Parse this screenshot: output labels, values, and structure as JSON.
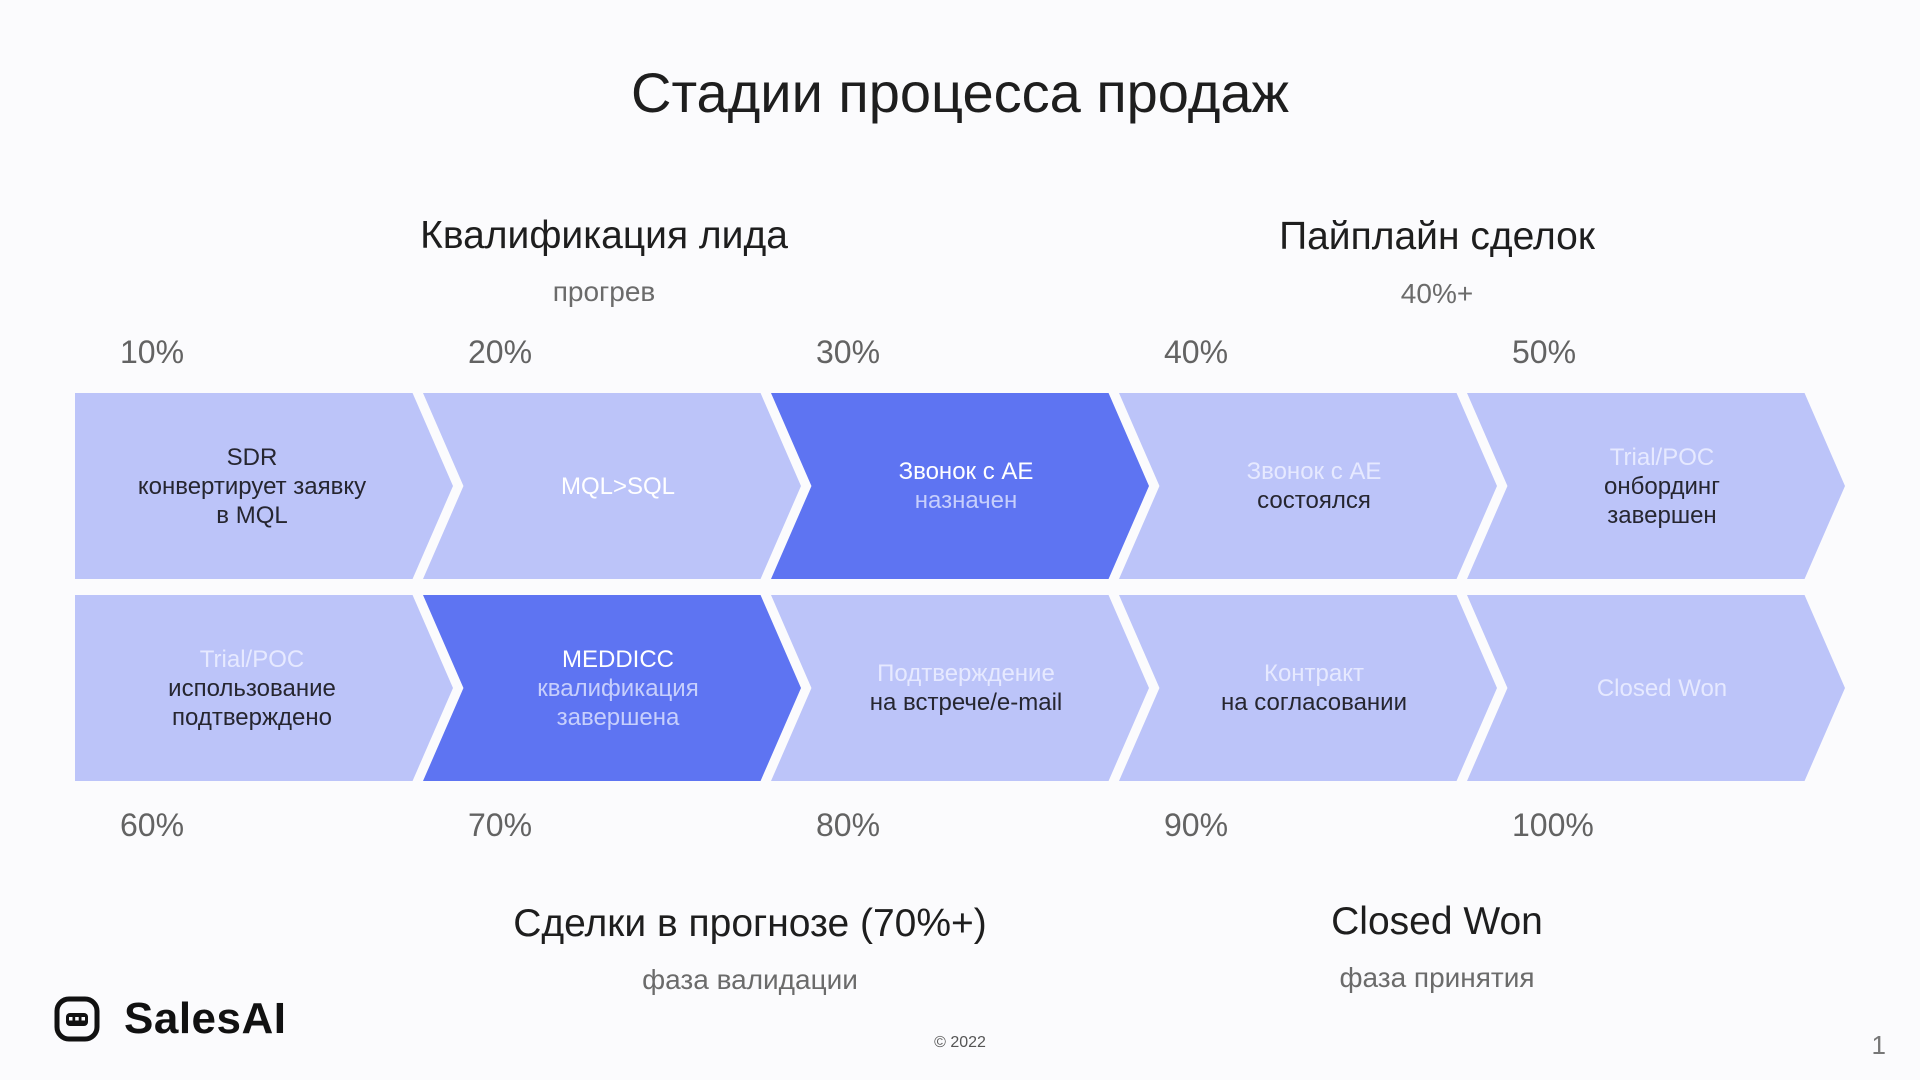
{
  "title": "Стадии процесса продаж",
  "groups": {
    "qualification": {
      "title": "Квалификация лида",
      "subtitle": "прогрев"
    },
    "pipeline": {
      "title": "Пайплайн сделок",
      "subtitle": "40%+"
    },
    "forecast": {
      "title": "Сделки в прогнозе (70%+)",
      "subtitle": "фаза валидации"
    },
    "closed": {
      "title": "Closed Won",
      "subtitle": "фаза принятия"
    }
  },
  "stages": [
    {
      "percent": "10%",
      "lines": [
        "SDR",
        "конвертирует заявку",
        "в MQL"
      ],
      "line_colors": [
        "dark",
        "dark",
        "dark"
      ],
      "fill": "light"
    },
    {
      "percent": "20%",
      "lines": [
        "MQL>SQL"
      ],
      "line_colors": [
        "white"
      ],
      "fill": "light"
    },
    {
      "percent": "30%",
      "lines": [
        "Звонок с АЕ",
        "назначен"
      ],
      "line_colors": [
        "white",
        "muted"
      ],
      "fill": "dark"
    },
    {
      "percent": "40%",
      "lines": [
        "Звонок с АЕ",
        "состоялся"
      ],
      "line_colors": [
        "muted",
        "dark"
      ],
      "fill": "light"
    },
    {
      "percent": "50%",
      "lines": [
        "Trial/POC",
        "онбординг",
        "завершен"
      ],
      "line_colors": [
        "muted",
        "dark",
        "dark"
      ],
      "fill": "light"
    },
    {
      "percent": "60%",
      "lines": [
        "Trial/POC",
        "использование",
        "подтверждено"
      ],
      "line_colors": [
        "muted",
        "dark",
        "dark"
      ],
      "fill": "light"
    },
    {
      "percent": "70%",
      "lines": [
        "MEDDICC",
        "квалификация",
        "завершена"
      ],
      "line_colors": [
        "white",
        "muted",
        "muted"
      ],
      "fill": "dark"
    },
    {
      "percent": "80%",
      "lines": [
        "Подтверждение",
        "на встрече/e-mail"
      ],
      "line_colors": [
        "muted",
        "dark"
      ],
      "fill": "light"
    },
    {
      "percent": "90%",
      "lines": [
        "Контракт",
        "на согласовании"
      ],
      "line_colors": [
        "muted",
        "dark"
      ],
      "fill": "light"
    },
    {
      "percent": "100%",
      "lines": [
        "Closed Won"
      ],
      "line_colors": [
        "muted"
      ],
      "fill": "light"
    }
  ],
  "logo": {
    "text": "SalesAI",
    "icon": "chat-bubble-icon"
  },
  "footer": {
    "copyright": "© 2022",
    "page_number": "1"
  },
  "colors": {
    "light_fill": "#bcc4f9",
    "dark_fill": "#5e74f2",
    "background": "#fbfbfd"
  }
}
